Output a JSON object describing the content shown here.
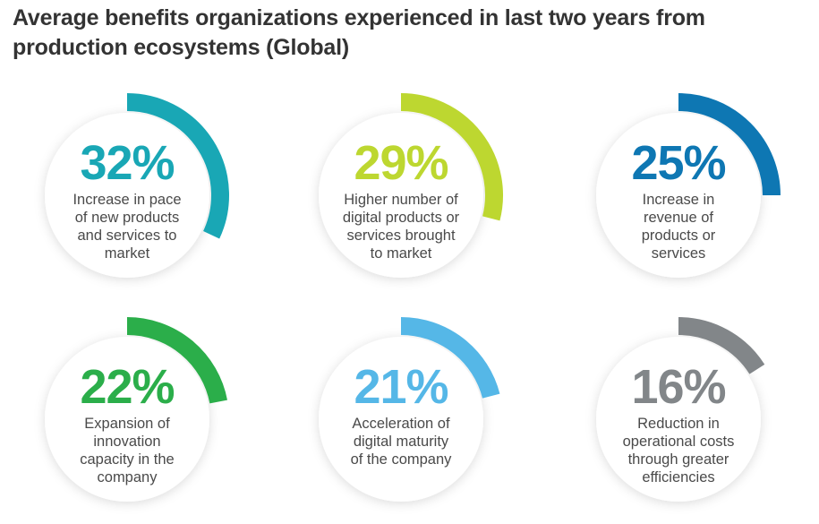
{
  "title": "Average benefits organizations experienced in last two years from production ecosystems (Global)",
  "chart_data": {
    "type": "radial-progress",
    "title": "Average benefits organizations experienced in last two years from production ecosystems (Global)",
    "unit": "%",
    "max": 100,
    "items": [
      {
        "value": 32,
        "label": "32%",
        "lines": [
          "Increase in pace",
          "of new products",
          "and services to",
          "market"
        ],
        "color": "#19a7b5"
      },
      {
        "value": 29,
        "label": "29%",
        "lines": [
          "Higher number of",
          "digital products or",
          "services brought",
          "to market"
        ],
        "color": "#bdd730"
      },
      {
        "value": 25,
        "label": "25%",
        "lines": [
          "Increase in",
          "revenue of",
          "products or",
          "services"
        ],
        "color": "#0e77b3"
      },
      {
        "value": 22,
        "label": "22%",
        "lines": [
          "Expansion of",
          "innovation",
          "capacity in the",
          "company"
        ],
        "color": "#2bae4a"
      },
      {
        "value": 21,
        "label": "21%",
        "lines": [
          "Acceleration of",
          "digital maturity",
          "of the company"
        ],
        "color": "#55b7e7"
      },
      {
        "value": 16,
        "label": "16%",
        "lines": [
          "Reduction in",
          "operational costs",
          "through greater",
          "efficiencies"
        ],
        "color": "#828689"
      }
    ]
  }
}
